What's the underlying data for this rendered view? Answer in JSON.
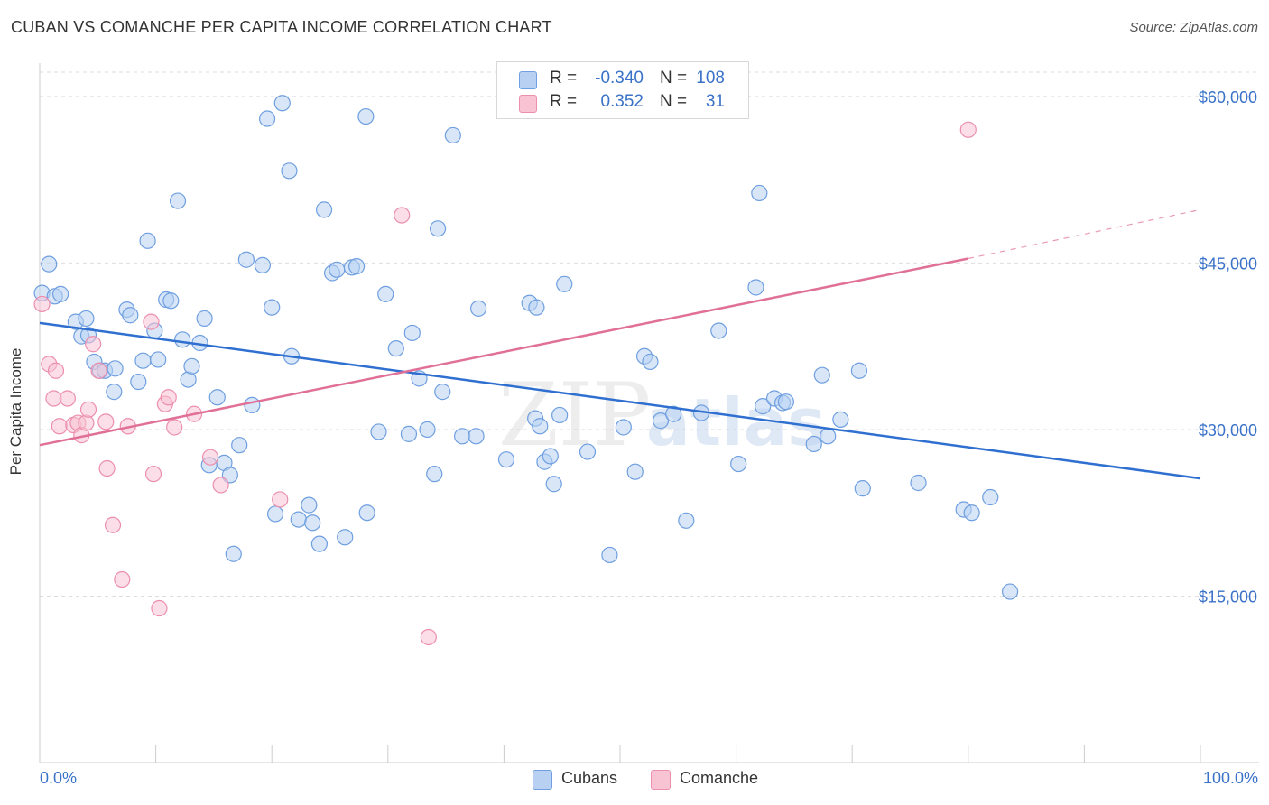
{
  "title": "CUBAN VS COMANCHE PER CAPITA INCOME CORRELATION CHART",
  "source": "Source: ZipAtlas.com",
  "legend": {
    "rows": [
      {
        "r_label": "R =",
        "r_value": "-0.340",
        "n_label": "N =",
        "n_value": "108"
      },
      {
        "r_label": "R =",
        "r_value": "0.352",
        "n_label": "N =",
        "n_value": "31"
      }
    ]
  },
  "bottom_legend": {
    "cubans": "Cubans",
    "comanche": "Comanche"
  },
  "x_axis": {
    "min_label": "0.0%",
    "max_label": "100.0%"
  },
  "watermark": {
    "zip": "ZIP",
    "atlas": "atlas"
  },
  "colors": {
    "cubans_fill": "#b8d1f2",
    "cubans_stroke": "#6f9fe0",
    "cubans_line": "#2f6fd0",
    "comanche_fill": "#f8c3d3",
    "comanche_stroke": "#ec8fae",
    "comanche_line": "#e07098",
    "grid": "#dddddd",
    "tick_label": "#3a72c8"
  },
  "chart_data": {
    "type": "scatter",
    "title": "CUBAN VS COMANCHE PER CAPITA INCOME CORRELATION CHART",
    "xlabel": "",
    "ylabel": "Per Capita Income",
    "xlim": [
      0,
      100
    ],
    "ylim": [
      0,
      63000
    ],
    "y_ticks": [
      {
        "value": 15000,
        "label": "$15,000"
      },
      {
        "value": 30000,
        "label": "$30,000"
      },
      {
        "value": 45000,
        "label": "$45,000"
      },
      {
        "value": 60000,
        "label": "$60,000"
      }
    ],
    "grid": true,
    "legend_position": "top-center",
    "series": [
      {
        "name": "Cubans",
        "trend": {
          "x0": 0,
          "y0": 39600,
          "x1": 100,
          "y1": 25600
        },
        "points": [
          [
            0.2,
            42300
          ],
          [
            0.8,
            44900
          ],
          [
            1.3,
            42000
          ],
          [
            1.8,
            42200
          ],
          [
            3.1,
            39700
          ],
          [
            3.6,
            38400
          ],
          [
            4.0,
            40000
          ],
          [
            4.2,
            38500
          ],
          [
            4.7,
            36100
          ],
          [
            5.2,
            35300
          ],
          [
            5.6,
            35300
          ],
          [
            6.5,
            35500
          ],
          [
            6.4,
            33400
          ],
          [
            7.5,
            40800
          ],
          [
            7.8,
            40300
          ],
          [
            8.5,
            34300
          ],
          [
            8.9,
            36200
          ],
          [
            9.3,
            47000
          ],
          [
            9.9,
            38900
          ],
          [
            10.2,
            36300
          ],
          [
            10.9,
            41700
          ],
          [
            11.3,
            41600
          ],
          [
            11.9,
            50600
          ],
          [
            12.3,
            38100
          ],
          [
            12.8,
            34500
          ],
          [
            13.1,
            35700
          ],
          [
            13.8,
            37800
          ],
          [
            14.2,
            40000
          ],
          [
            14.6,
            26800
          ],
          [
            15.3,
            32900
          ],
          [
            15.9,
            27000
          ],
          [
            16.4,
            25900
          ],
          [
            16.7,
            18800
          ],
          [
            17.2,
            28600
          ],
          [
            17.8,
            45300
          ],
          [
            18.3,
            32200
          ],
          [
            19.2,
            44800
          ],
          [
            19.6,
            58000
          ],
          [
            20.0,
            41000
          ],
          [
            20.3,
            22400
          ],
          [
            20.9,
            59400
          ],
          [
            21.5,
            53300
          ],
          [
            21.7,
            36600
          ],
          [
            22.3,
            21900
          ],
          [
            23.2,
            23200
          ],
          [
            23.5,
            21600
          ],
          [
            24.1,
            19700
          ],
          [
            24.5,
            49800
          ],
          [
            25.2,
            44100
          ],
          [
            25.6,
            44400
          ],
          [
            26.3,
            20300
          ],
          [
            26.9,
            44600
          ],
          [
            27.3,
            44700
          ],
          [
            28.1,
            58200
          ],
          [
            28.2,
            22500
          ],
          [
            29.2,
            29800
          ],
          [
            29.8,
            42200
          ],
          [
            30.7,
            37300
          ],
          [
            31.8,
            29600
          ],
          [
            32.1,
            38700
          ],
          [
            32.7,
            34600
          ],
          [
            33.4,
            30000
          ],
          [
            34.0,
            26000
          ],
          [
            34.3,
            48100
          ],
          [
            34.7,
            33400
          ],
          [
            35.6,
            56500
          ],
          [
            36.4,
            29400
          ],
          [
            37.6,
            29400
          ],
          [
            37.8,
            40900
          ],
          [
            40.2,
            27300
          ],
          [
            42.2,
            41400
          ],
          [
            42.7,
            31000
          ],
          [
            42.8,
            41000
          ],
          [
            43.1,
            30300
          ],
          [
            43.5,
            27100
          ],
          [
            44.0,
            27600
          ],
          [
            44.3,
            25100
          ],
          [
            44.8,
            31300
          ],
          [
            45.2,
            43100
          ],
          [
            47.2,
            28000
          ],
          [
            49.1,
            18700
          ],
          [
            50.3,
            30200
          ],
          [
            51.3,
            26200
          ],
          [
            52.1,
            36600
          ],
          [
            52.6,
            36100
          ],
          [
            53.5,
            30800
          ],
          [
            54.6,
            31400
          ],
          [
            55.7,
            21800
          ],
          [
            57.0,
            31500
          ],
          [
            58.5,
            38900
          ],
          [
            60.2,
            26900
          ],
          [
            61.7,
            42800
          ],
          [
            62.0,
            51300
          ],
          [
            62.3,
            32100
          ],
          [
            63.3,
            32800
          ],
          [
            64.0,
            32400
          ],
          [
            64.3,
            32500
          ],
          [
            66.7,
            28700
          ],
          [
            67.4,
            34900
          ],
          [
            67.9,
            29400
          ],
          [
            69.0,
            30900
          ],
          [
            70.6,
            35300
          ],
          [
            70.9,
            24700
          ],
          [
            75.7,
            25200
          ],
          [
            79.6,
            22800
          ],
          [
            80.3,
            22500
          ],
          [
            81.9,
            23900
          ],
          [
            83.6,
            15400
          ]
        ]
      },
      {
        "name": "Comanche",
        "trend": {
          "x0": 0,
          "y0": 28600,
          "x1": 80,
          "y1": 45400,
          "x1_dashed": 100,
          "y1_dashed": 49800
        },
        "points": [
          [
            0.2,
            41300
          ],
          [
            0.8,
            35900
          ],
          [
            1.2,
            32800
          ],
          [
            1.4,
            35300
          ],
          [
            1.7,
            30300
          ],
          [
            2.4,
            32800
          ],
          [
            2.9,
            30400
          ],
          [
            3.3,
            30600
          ],
          [
            3.6,
            29500
          ],
          [
            4.0,
            30600
          ],
          [
            4.2,
            31800
          ],
          [
            4.6,
            37700
          ],
          [
            5.1,
            35300
          ],
          [
            5.7,
            30700
          ],
          [
            5.8,
            26500
          ],
          [
            6.3,
            21400
          ],
          [
            7.1,
            16500
          ],
          [
            7.6,
            30300
          ],
          [
            9.6,
            39700
          ],
          [
            9.8,
            26000
          ],
          [
            10.3,
            13900
          ],
          [
            10.8,
            32300
          ],
          [
            11.1,
            32900
          ],
          [
            11.6,
            30200
          ],
          [
            13.3,
            31400
          ],
          [
            14.7,
            27500
          ],
          [
            15.6,
            25000
          ],
          [
            20.7,
            23700
          ],
          [
            31.2,
            49300
          ],
          [
            33.5,
            11300
          ],
          [
            80.0,
            57000
          ]
        ]
      }
    ]
  }
}
